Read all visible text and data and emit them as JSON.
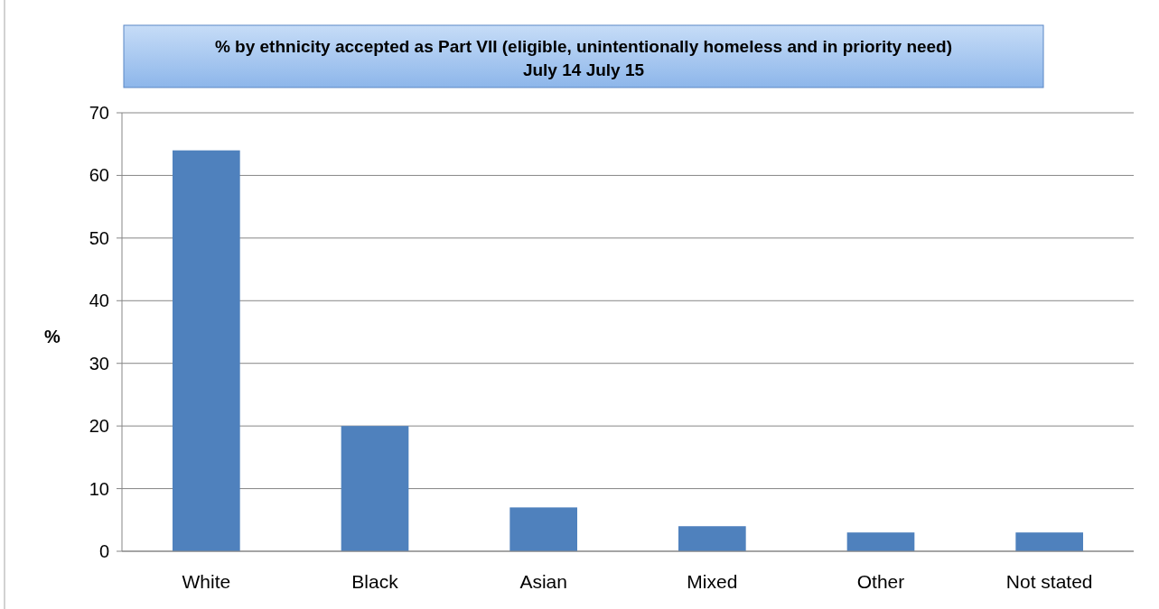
{
  "chart_data": {
    "type": "bar",
    "title": "% by ethnicity accepted as Part VII (eligible, unintentionally homeless and in priority need)",
    "subtitle": "July 14 July 15",
    "ylabel": "%",
    "categories": [
      "White",
      "Black",
      "Asian",
      "Mixed",
      "Other",
      "Not stated"
    ],
    "values": [
      64,
      20,
      7,
      4,
      3,
      3
    ],
    "color": "#4f81bd",
    "ylim": [
      0,
      70
    ],
    "yticks": [
      0,
      10,
      20,
      30,
      40,
      50,
      60,
      70
    ],
    "grid": "y"
  }
}
